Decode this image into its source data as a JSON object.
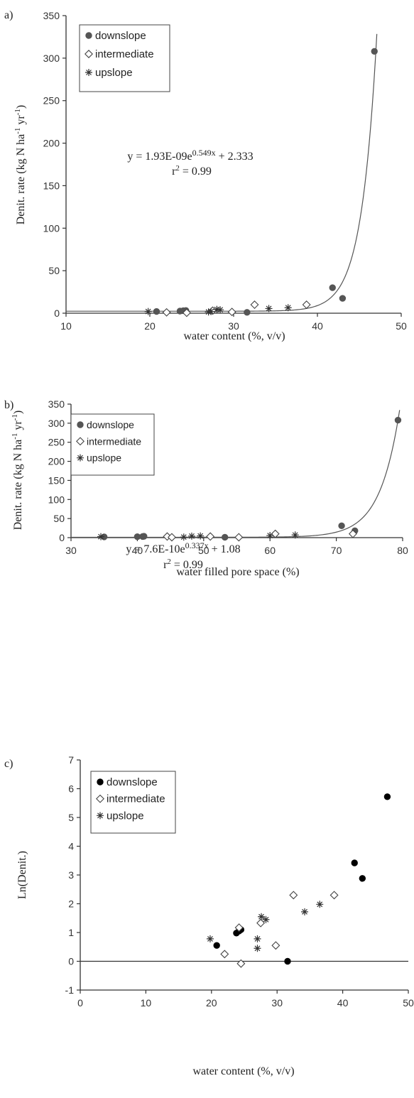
{
  "chart_data": [
    {
      "panel_label": "a)",
      "type": "scatter",
      "xlabel": "water content (%, v/v)",
      "ylabel": "Denit. rate (kg N ha-1 yr-1)",
      "ylabel_parts": [
        "Denit. rate (kg N ha",
        "-1",
        " yr",
        "-1",
        ")"
      ],
      "xlim": [
        10,
        50
      ],
      "ylim": [
        0,
        350
      ],
      "xticks": [
        "10",
        "20",
        "30",
        "40",
        "50"
      ],
      "yticks": [
        "0",
        "50",
        "100",
        "150",
        "200",
        "250",
        "300",
        "350"
      ],
      "grid": false,
      "legend_position": "top-left",
      "equation": "y = 1.93E-09e0.549x + 2.333",
      "equation_parts": [
        "y = 1.93E-09e",
        "0.549x",
        " + 2.333"
      ],
      "r2": "r2 = 0.99",
      "r2_parts": [
        "r",
        "2",
        " = 0.99"
      ],
      "fit": {
        "a": 1.93e-09,
        "b": 0.549,
        "c": 2.333
      },
      "series": [
        {
          "name": "downslope",
          "marker": "dot",
          "x": [
            20.8,
            23.6,
            24.0,
            24.3,
            31.6,
            41.8,
            43.0,
            46.8
          ],
          "y": [
            2.0,
            2.5,
            3.0,
            3.2,
            1.0,
            30.0,
            17.5,
            308.0
          ]
        },
        {
          "name": "intermediate",
          "marker": "diamond",
          "x": [
            22.0,
            24.4,
            27.5,
            29.8,
            32.5,
            38.7
          ],
          "y": [
            1.0,
            0.5,
            3.0,
            1.5,
            10.0,
            10.0
          ]
        },
        {
          "name": "upslope",
          "marker": "asterisk",
          "x": [
            19.8,
            27.0,
            27.3,
            28.0,
            28.4,
            34.2,
            36.5
          ],
          "y": [
            2.0,
            1.5,
            2.0,
            4.5,
            4.0,
            5.5,
            6.5
          ]
        }
      ]
    },
    {
      "panel_label": "b)",
      "type": "scatter",
      "xlabel": "water filled pore space (%)",
      "ylabel": "Denit. rate (kg N ha-1 yr-1)",
      "ylabel_parts": [
        "Denit. rate (kg N ha",
        "-1",
        " yr",
        "-1",
        ")"
      ],
      "xlim": [
        30,
        80
      ],
      "ylim": [
        0,
        350
      ],
      "xticks": [
        "30",
        "40",
        "50",
        "60",
        "70",
        "80"
      ],
      "yticks": [
        "0",
        "50",
        "100",
        "150",
        "200",
        "250",
        "300",
        "350"
      ],
      "grid": false,
      "legend_position": "top-left",
      "equation": "y = 7.6E-10e0.337x + 1.08",
      "equation_parts": [
        "y = 7.6E-10e",
        "0.337x",
        " + 1.08"
      ],
      "r2": "r2 = 0.99",
      "r2_parts": [
        "r",
        "2",
        " = 0.99"
      ],
      "fit": {
        "a": 7.6e-10,
        "b": 0.337,
        "c": 1.08
      },
      "series": [
        {
          "name": "downslope",
          "marker": "dot",
          "x": [
            35.0,
            40.0,
            40.8,
            41.0,
            53.2,
            70.8,
            72.8,
            79.3
          ],
          "y": [
            2.0,
            2.5,
            3.0,
            3.5,
            1.0,
            31.0,
            18.0,
            308.0
          ]
        },
        {
          "name": "intermediate",
          "marker": "diamond",
          "x": [
            44.5,
            45.2,
            51.0,
            55.3,
            60.8,
            72.5
          ],
          "y": [
            3.0,
            1.0,
            3.0,
            1.0,
            10.0,
            10.0
          ]
        },
        {
          "name": "upslope",
          "marker": "asterisk",
          "x": [
            34.5,
            47.0,
            48.2,
            49.5,
            60.0,
            63.8
          ],
          "y": [
            2.5,
            1.5,
            4.0,
            4.5,
            5.5,
            7.0
          ]
        }
      ]
    },
    {
      "panel_label": "c)",
      "type": "scatter",
      "xlabel": "water content (%, v/v)",
      "ylabel": "Ln(Denit.)",
      "xlim": [
        0,
        50
      ],
      "ylim": [
        -1,
        7
      ],
      "xticks": [
        "0",
        "10",
        "20",
        "30",
        "40",
        "50"
      ],
      "yticks": [
        "-1",
        "0",
        "1",
        "2",
        "3",
        "4",
        "5",
        "6",
        "7"
      ],
      "grid": false,
      "legend_position": "top-left",
      "series": [
        {
          "name": "downslope",
          "marker": "dot",
          "x": [
            20.8,
            23.8,
            24.2,
            24.5,
            31.6,
            41.8,
            43.0,
            46.8
          ],
          "y": [
            0.55,
            0.98,
            1.05,
            1.1,
            0.0,
            3.42,
            2.88,
            5.72
          ]
        },
        {
          "name": "intermediate",
          "marker": "diamond",
          "x": [
            22.0,
            24.2,
            24.5,
            27.5,
            29.8,
            32.5,
            38.7
          ],
          "y": [
            0.25,
            1.17,
            -0.08,
            1.33,
            0.55,
            2.3,
            2.3
          ]
        },
        {
          "name": "upslope",
          "marker": "asterisk",
          "x": [
            19.8,
            27.0,
            27.0,
            27.6,
            28.3,
            34.2,
            36.5
          ],
          "y": [
            0.78,
            0.78,
            0.45,
            1.55,
            1.45,
            1.72,
            1.98
          ]
        }
      ]
    }
  ]
}
